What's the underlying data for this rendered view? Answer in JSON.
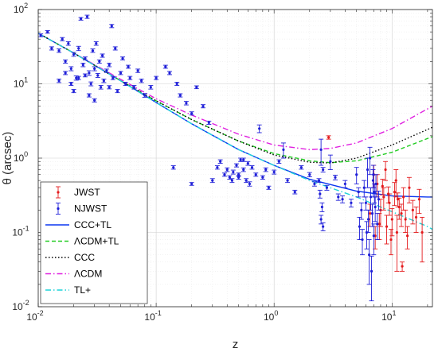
{
  "chart_data": {
    "type": "scatter",
    "title": "",
    "xlabel": "z",
    "ylabel": "θ (arcsec)",
    "xscale": "log",
    "yscale": "log",
    "xlim": [
      0.01,
      22
    ],
    "ylim": [
      0.01,
      100
    ],
    "x_ticks": [
      {
        "value": 0.01,
        "base": "10",
        "exp": "-2"
      },
      {
        "value": 0.1,
        "base": "10",
        "exp": "-1"
      },
      {
        "value": 1,
        "base": "10",
        "exp": "0"
      },
      {
        "value": 10,
        "base": "10",
        "exp": "1"
      }
    ],
    "y_ticks": [
      {
        "value": 0.01,
        "base": "10",
        "exp": "-2"
      },
      {
        "value": 0.1,
        "base": "10",
        "exp": "-1"
      },
      {
        "value": 1,
        "base": "10",
        "exp": "0"
      },
      {
        "value": 10,
        "base": "10",
        "exp": "1"
      },
      {
        "value": 100,
        "base": "10",
        "exp": "2"
      }
    ],
    "grid": true,
    "legend_position": "bottom-left",
    "legend": [
      "JWST",
      "NJWST",
      "CCC+TL",
      "ΛCDM+TL",
      "CCC",
      "ΛCDM",
      "TL+"
    ],
    "series": [
      {
        "name": "JWST",
        "kind": "errorbar",
        "color": "#e41a1c",
        "points": [
          [
            2.9,
            1.9,
            0.1
          ],
          [
            7.0,
            0.6,
            0.2
          ],
          [
            7.5,
            0.45,
            0.15
          ],
          [
            8.0,
            0.2,
            0.08
          ],
          [
            8.5,
            0.3,
            0.1
          ],
          [
            9.0,
            0.12,
            0.05
          ],
          [
            9.5,
            0.25,
            0.08
          ],
          [
            10.0,
            0.15,
            0.06
          ],
          [
            10.5,
            0.35,
            0.12
          ],
          [
            11.0,
            0.1,
            0.07
          ],
          [
            11.5,
            0.22,
            0.07
          ],
          [
            12.0,
            0.18,
            0.06
          ],
          [
            12.5,
            0.3,
            0.1
          ],
          [
            13.0,
            0.15,
            0.05
          ],
          [
            13.5,
            0.09,
            0.03
          ],
          [
            14.0,
            0.4,
            0.15
          ],
          [
            15.0,
            0.2,
            0.07
          ],
          [
            16.0,
            0.16,
            0.06
          ],
          [
            18.0,
            0.1,
            0.06
          ],
          [
            17.0,
            0.28,
            0.1
          ],
          [
            12.2,
            0.035,
            0.005
          ],
          [
            8.8,
            0.7,
            0.2
          ],
          [
            7.8,
            0.13,
            0.05
          ],
          [
            9.8,
            0.08,
            0.03
          ],
          [
            10.8,
            0.5,
            0.2
          ],
          [
            6.5,
            0.18,
            0.06
          ],
          [
            7.2,
            0.09,
            0.03
          ],
          [
            11.2,
            0.28,
            0.06
          ],
          [
            8.3,
            0.42,
            0.1
          ],
          [
            9.3,
            0.33,
            0.08
          ]
        ]
      },
      {
        "name": "NJWST",
        "kind": "errorbar",
        "color": "#1f1fd8",
        "points": [
          [
            0.0105,
            45,
            2
          ],
          [
            0.012,
            50,
            2
          ],
          [
            0.013,
            30,
            1.5
          ],
          [
            0.015,
            28,
            1.5
          ],
          [
            0.016,
            40,
            2
          ],
          [
            0.017,
            20,
            1
          ],
          [
            0.018,
            35,
            2
          ],
          [
            0.019,
            16,
            1
          ],
          [
            0.02,
            25,
            1.5
          ],
          [
            0.021,
            12,
            0.8
          ],
          [
            0.022,
            30,
            2
          ],
          [
            0.023,
            75,
            3
          ],
          [
            0.024,
            18,
            1
          ],
          [
            0.025,
            22,
            1
          ],
          [
            0.026,
            80,
            4
          ],
          [
            0.027,
            14,
            1
          ],
          [
            0.028,
            10,
            0.6
          ],
          [
            0.029,
            28,
            1.5
          ],
          [
            0.03,
            16,
            1
          ],
          [
            0.031,
            35,
            2
          ],
          [
            0.032,
            13,
            0.8
          ],
          [
            0.033,
            20,
            1
          ],
          [
            0.034,
            9,
            0.5
          ],
          [
            0.035,
            24,
            1.2
          ],
          [
            0.036,
            11,
            0.6
          ],
          [
            0.038,
            15,
            0.8
          ],
          [
            0.04,
            18,
            1
          ],
          [
            0.042,
            60,
            3
          ],
          [
            0.043,
            12,
            0.6
          ],
          [
            0.045,
            30,
            1.5
          ],
          [
            0.047,
            8,
            0.4
          ],
          [
            0.05,
            14,
            0.7
          ],
          [
            0.052,
            22,
            1
          ],
          [
            0.055,
            10,
            0.5
          ],
          [
            0.058,
            17,
            0.8
          ],
          [
            0.06,
            12,
            0.6
          ],
          [
            0.065,
            9,
            0.5
          ],
          [
            0.07,
            15,
            0.8
          ],
          [
            0.075,
            11,
            0.6
          ],
          [
            0.08,
            7,
            0.4
          ],
          [
            0.09,
            9,
            0.5
          ],
          [
            0.1,
            12,
            0.6
          ],
          [
            0.12,
            17,
            0.8
          ],
          [
            0.13,
            14,
            0.7
          ],
          [
            0.15,
            10,
            0.5
          ],
          [
            0.16,
            7,
            0.35
          ],
          [
            0.18,
            5.5,
            0.3
          ],
          [
            0.2,
            4,
            0.2
          ],
          [
            0.22,
            9,
            0.4
          ],
          [
            0.25,
            5,
            0.25
          ],
          [
            0.28,
            3,
            0.15
          ],
          [
            0.03,
            6,
            0.3
          ],
          [
            0.02,
            8,
            0.4
          ],
          [
            0.015,
            11,
            0.6
          ],
          [
            0.017,
            14,
            0.7
          ],
          [
            0.019,
            10,
            0.5
          ],
          [
            0.022,
            12,
            0.6
          ],
          [
            0.025,
            13,
            0.6
          ],
          [
            0.027,
            7,
            0.35
          ],
          [
            0.04,
            9,
            0.45
          ],
          [
            0.14,
            0.75,
            0.04
          ],
          [
            0.2,
            0.45,
            0.02
          ],
          [
            0.3,
            0.5,
            0.03
          ],
          [
            0.35,
            0.9,
            0.05
          ],
          [
            0.4,
            0.7,
            0.04
          ],
          [
            0.42,
            0.55,
            0.03
          ],
          [
            0.45,
            0.65,
            0.04
          ],
          [
            0.48,
            0.8,
            0.04
          ],
          [
            0.5,
            0.6,
            0.03
          ],
          [
            0.52,
            0.95,
            0.05
          ],
          [
            0.55,
            0.7,
            0.04
          ],
          [
            0.58,
            0.5,
            0.03
          ],
          [
            0.6,
            0.85,
            0.05
          ],
          [
            0.62,
            0.45,
            0.03
          ],
          [
            0.65,
            0.75,
            0.04
          ],
          [
            0.7,
            0.6,
            0.03
          ],
          [
            0.75,
            2.5,
            0.3
          ],
          [
            0.8,
            0.55,
            0.03
          ],
          [
            0.85,
            0.7,
            0.04
          ],
          [
            0.9,
            0.4,
            0.02
          ],
          [
            1.0,
            0.65,
            0.04
          ],
          [
            1.1,
            0.9,
            0.05
          ],
          [
            1.2,
            1.3,
            0.3
          ],
          [
            1.3,
            0.5,
            0.03
          ],
          [
            1.5,
            0.35,
            0.02
          ],
          [
            1.7,
            0.75,
            0.04
          ],
          [
            2.0,
            0.6,
            0.04
          ],
          [
            2.2,
            0.45,
            0.03
          ],
          [
            2.4,
            0.5,
            0.03
          ],
          [
            2.5,
            1.3,
            0.5
          ],
          [
            2.6,
            0.7,
            0.05
          ],
          [
            2.8,
            0.4,
            0.03
          ],
          [
            3.0,
            0.9,
            0.2
          ],
          [
            3.3,
            0.55,
            0.04
          ],
          [
            3.5,
            0.3,
            0.03
          ],
          [
            4.0,
            0.45,
            0.05
          ],
          [
            4.5,
            0.25,
            0.03
          ],
          [
            5.0,
            0.6,
            0.15
          ],
          [
            5.2,
            0.35,
            0.05
          ],
          [
            5.5,
            0.2,
            0.05
          ],
          [
            5.8,
            0.4,
            0.1
          ],
          [
            6.0,
            0.25,
            0.05
          ],
          [
            6.2,
            0.7,
            0.3
          ],
          [
            6.3,
            0.15,
            0.05
          ],
          [
            6.5,
            1.0,
            0.4
          ],
          [
            6.6,
            0.3,
            0.1
          ],
          [
            6.8,
            0.18,
            0.06
          ],
          [
            6.9,
            0.5,
            0.2
          ],
          [
            7.0,
            0.09,
            0.04
          ],
          [
            7.1,
            0.35,
            0.1
          ],
          [
            7.2,
            0.22,
            0.08
          ],
          [
            7.3,
            0.45,
            0.15
          ],
          [
            7.5,
            0.13,
            0.05
          ],
          [
            7.7,
            0.28,
            0.08
          ],
          [
            5.3,
            0.12,
            0.04
          ],
          [
            5.6,
            0.08,
            0.03
          ],
          [
            6.4,
            0.05,
            0.03
          ],
          [
            6.7,
            0.03,
            0.018
          ],
          [
            6.1,
            0.1,
            0.04
          ],
          [
            6.95,
            0.6,
            0.2
          ],
          [
            2.45,
            0.33,
            0.04
          ],
          [
            2.55,
            0.22,
            0.03
          ],
          [
            2.5,
            0.15,
            0.02
          ],
          [
            2.6,
            0.12,
            0.015
          ],
          [
            3.8,
            0.28,
            0.03
          ],
          [
            0.55,
            0.95,
            0.05
          ],
          [
            0.5,
            0.55,
            0.03
          ],
          [
            0.38,
            0.6,
            0.03
          ],
          [
            0.33,
            0.75,
            0.04
          ],
          [
            0.44,
            0.5,
            0.03
          ]
        ]
      },
      {
        "name": "CCC+TL",
        "kind": "line",
        "color": "#0b36f0",
        "dash": "",
        "width": 1.4,
        "points": [
          [
            0.01,
            48
          ],
          [
            0.02,
            26
          ],
          [
            0.05,
            11
          ],
          [
            0.1,
            5.6
          ],
          [
            0.2,
            2.9
          ],
          [
            0.5,
            1.3
          ],
          [
            1,
            0.8
          ],
          [
            2,
            0.52
          ],
          [
            5,
            0.36
          ],
          [
            10,
            0.31
          ],
          [
            20,
            0.3
          ],
          [
            22,
            0.3
          ]
        ]
      },
      {
        "name": "ΛCDM+TL",
        "kind": "line",
        "color": "#22cc22",
        "dash": "5,3",
        "width": 1.4,
        "points": [
          [
            0.01,
            48
          ],
          [
            0.02,
            26
          ],
          [
            0.05,
            11
          ],
          [
            0.1,
            5.9
          ],
          [
            0.2,
            3.3
          ],
          [
            0.5,
            1.7
          ],
          [
            1,
            1.15
          ],
          [
            2,
            0.92
          ],
          [
            3,
            0.87
          ],
          [
            5,
            0.92
          ],
          [
            10,
            1.2
          ],
          [
            22,
            1.95
          ]
        ]
      },
      {
        "name": "CCC",
        "kind": "line",
        "color": "#000000",
        "dash": "1.5,2.5",
        "width": 1.4,
        "points": [
          [
            0.01,
            48
          ],
          [
            0.02,
            26
          ],
          [
            0.05,
            11
          ],
          [
            0.1,
            5.9
          ],
          [
            0.2,
            3.3
          ],
          [
            0.5,
            1.7
          ],
          [
            1,
            1.1
          ],
          [
            2,
            0.88
          ],
          [
            3,
            0.86
          ],
          [
            5,
            1.0
          ],
          [
            10,
            1.5
          ],
          [
            22,
            2.6
          ]
        ]
      },
      {
        "name": "ΛCDM",
        "kind": "line",
        "color": "#e01fe0",
        "dash": "7,3,1.5,3",
        "width": 1.4,
        "points": [
          [
            0.01,
            48
          ],
          [
            0.02,
            26
          ],
          [
            0.05,
            11.5
          ],
          [
            0.1,
            6.3
          ],
          [
            0.2,
            3.8
          ],
          [
            0.5,
            2.1
          ],
          [
            1,
            1.5
          ],
          [
            2,
            1.3
          ],
          [
            3,
            1.35
          ],
          [
            5,
            1.6
          ],
          [
            10,
            2.5
          ],
          [
            22,
            5.0
          ]
        ]
      },
      {
        "name": "TL+",
        "kind": "line",
        "color": "#1fd3d8",
        "dash": "7,3,1.5,3",
        "width": 1.4,
        "points": [
          [
            0.01,
            48
          ],
          [
            0.02,
            26
          ],
          [
            0.05,
            11
          ],
          [
            0.1,
            5.6
          ],
          [
            0.2,
            2.9
          ],
          [
            0.5,
            1.3
          ],
          [
            1,
            0.8
          ],
          [
            2,
            0.5
          ],
          [
            5,
            0.3
          ],
          [
            10,
            0.19
          ],
          [
            20,
            0.12
          ],
          [
            22,
            0.11
          ]
        ]
      }
    ]
  }
}
